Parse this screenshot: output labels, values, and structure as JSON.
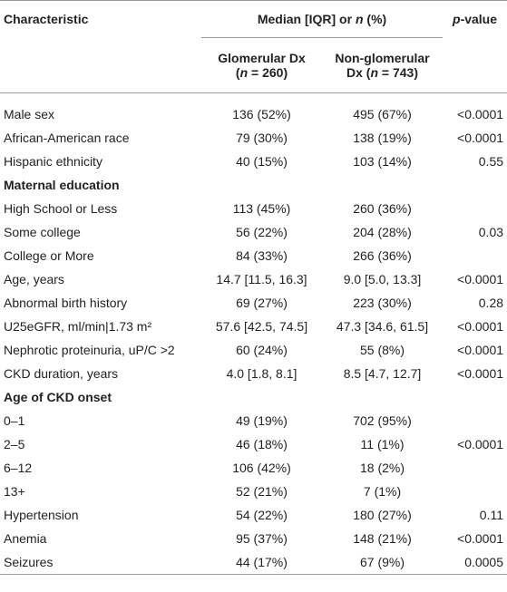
{
  "header": {
    "characteristic": "Characteristic",
    "group_label": "Median [IQR] or n (%)",
    "pvalue_p": "p",
    "pvalue_rest": "-value",
    "glom_line1": "Glomerular Dx",
    "glom_n": "(n = 260)",
    "nonglom_line1": "Non-glomerular",
    "nonglom_n": "Dx (n = 743)"
  },
  "rows": [
    {
      "label": "Male sex",
      "glom": "136 (52%)",
      "nonglom": "495 (67%)",
      "p": "<0.0001"
    },
    {
      "label": "African-American race",
      "glom": "79 (30%)",
      "nonglom": "138 (19%)",
      "p": "<0.0001"
    },
    {
      "label": "Hispanic ethnicity",
      "glom": "40 (15%)",
      "nonglom": "103 (14%)",
      "p": "0.55"
    },
    {
      "label": "Maternal education",
      "glom": "",
      "nonglom": "",
      "p": ""
    },
    {
      "label": "High School or Less",
      "glom": "113 (45%)",
      "nonglom": "260 (36%)",
      "p": ""
    },
    {
      "label": "Some college",
      "glom": "56 (22%)",
      "nonglom": "204 (28%)",
      "p": "0.03"
    },
    {
      "label": "College or More",
      "glom": "84 (33%)",
      "nonglom": "266 (36%)",
      "p": ""
    },
    {
      "label": "Age, years",
      "glom": "14.7 [11.5, 16.3]",
      "nonglom": "9.0 [5.0, 13.3]",
      "p": "<0.0001"
    },
    {
      "label": "Abnormal birth history",
      "glom": "69 (27%)",
      "nonglom": "223 (30%)",
      "p": "0.28"
    },
    {
      "label": "U25eGFR, ml/min|1.73 m²",
      "glom": "57.6 [42.5, 74.5]",
      "nonglom": "47.3 [34.6, 61.5]",
      "p": "<0.0001"
    },
    {
      "label": "Nephrotic proteinuria, uP/C >2",
      "glom": "60 (24%)",
      "nonglom": "55 (8%)",
      "p": "<0.0001"
    },
    {
      "label": "CKD duration, years",
      "glom": "4.0 [1.8, 8.1]",
      "nonglom": "8.5 [4.7, 12.7]",
      "p": "<0.0001"
    },
    {
      "label": "Age of CKD onset",
      "glom": "",
      "nonglom": "",
      "p": ""
    },
    {
      "label": "0–1",
      "glom": "49 (19%)",
      "nonglom": "702 (95%)",
      "p": ""
    },
    {
      "label": "2–5",
      "glom": "46 (18%)",
      "nonglom": "11 (1%)",
      "p": "<0.0001"
    },
    {
      "label": "6–12",
      "glom": "106 (42%)",
      "nonglom": "18 (2%)",
      "p": ""
    },
    {
      "label": "13+",
      "glom": "52 (21%)",
      "nonglom": "7 (1%)",
      "p": ""
    },
    {
      "label": "Hypertension",
      "glom": "54 (22%)",
      "nonglom": "180 (27%)",
      "p": "0.11"
    },
    {
      "label": "Anemia",
      "glom": "95 (37%)",
      "nonglom": "148 (21%)",
      "p": "<0.0001"
    },
    {
      "label": "Seizures",
      "glom": "44 (17%)",
      "nonglom": "67 (9%)",
      "p": "0.0005"
    }
  ]
}
